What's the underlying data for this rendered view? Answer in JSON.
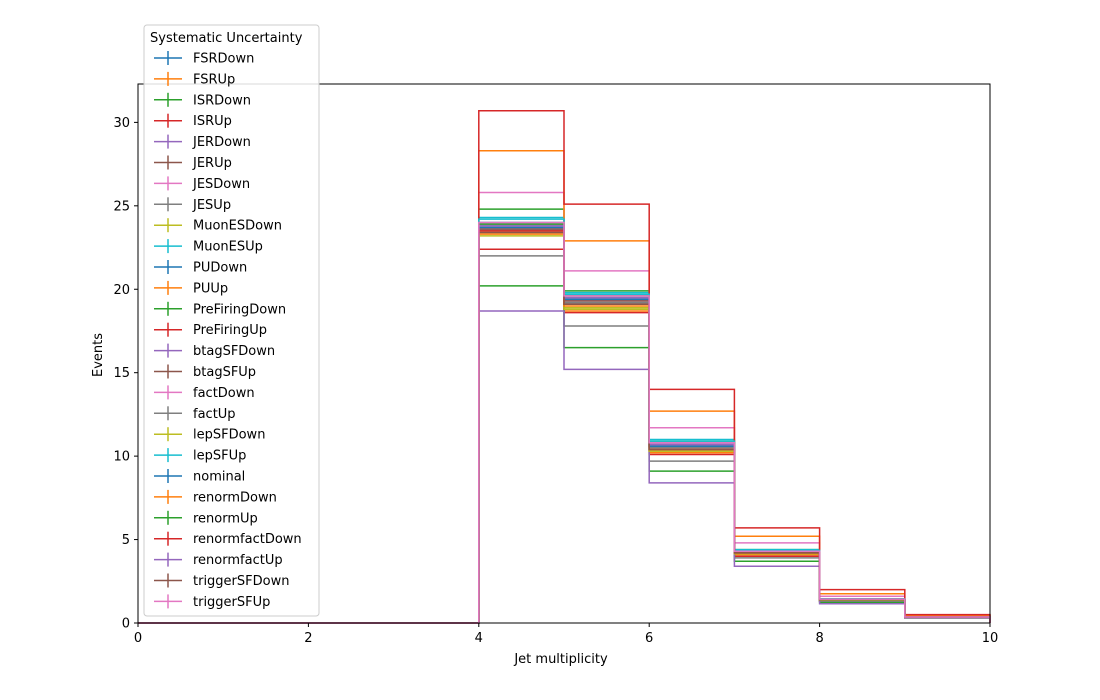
{
  "chart_data": {
    "type": "line",
    "title": "",
    "xlabel": "Jet multiplicity",
    "ylabel": "Events",
    "xlim": [
      0,
      10
    ],
    "ylim": [
      0,
      32.3
    ],
    "grid": false,
    "legend_title": "Systematic Uncertainty",
    "legend_placement": "top-left",
    "x_ticks": [
      "0",
      "2",
      "4",
      "6",
      "8",
      "10"
    ],
    "y_ticks": [
      "0",
      "5",
      "10",
      "15",
      "20",
      "25",
      "30"
    ],
    "bin_edges": [
      0,
      1,
      2,
      3,
      4,
      5,
      6,
      7,
      8,
      9,
      10
    ],
    "series": [
      {
        "name": "FSRDown",
        "color": "#1f77b4",
        "values": [
          0,
          0,
          0,
          0,
          24.0,
          19.6,
          10.7,
          4.3,
          1.4,
          0.35
        ]
      },
      {
        "name": "FSRUp",
        "color": "#ff7f0e",
        "values": [
          0,
          0,
          0,
          0,
          23.3,
          18.7,
          10.2,
          4.1,
          1.35,
          0.35
        ]
      },
      {
        "name": "ISRDown",
        "color": "#2ca02c",
        "values": [
          0,
          0,
          0,
          0,
          24.8,
          19.9,
          10.9,
          4.4,
          1.45,
          0.35
        ]
      },
      {
        "name": "ISRUp",
        "color": "#d62728",
        "values": [
          0,
          0,
          0,
          0,
          22.4,
          18.6,
          10.1,
          4.0,
          1.3,
          0.33
        ]
      },
      {
        "name": "JERDown",
        "color": "#9467bd",
        "values": [
          0,
          0,
          0,
          0,
          23.6,
          19.3,
          10.5,
          4.2,
          1.4,
          0.35
        ]
      },
      {
        "name": "JERUp",
        "color": "#8c564b",
        "values": [
          0,
          0,
          0,
          0,
          23.7,
          19.3,
          10.6,
          4.25,
          1.4,
          0.35
        ]
      },
      {
        "name": "JESDown",
        "color": "#e377c2",
        "values": [
          0,
          0,
          0,
          0,
          25.8,
          21.1,
          11.7,
          4.8,
          1.6,
          0.38
        ]
      },
      {
        "name": "JESUp",
        "color": "#7f7f7f",
        "values": [
          0,
          0,
          0,
          0,
          22.0,
          17.8,
          9.7,
          3.9,
          1.3,
          0.33
        ]
      },
      {
        "name": "MuonESDown",
        "color": "#bcbd22",
        "values": [
          0,
          0,
          0,
          0,
          23.5,
          18.9,
          10.3,
          4.15,
          1.38,
          0.34
        ]
      },
      {
        "name": "MuonESUp",
        "color": "#17becf",
        "values": [
          0,
          0,
          0,
          0,
          24.3,
          19.8,
          11.0,
          4.4,
          1.45,
          0.36
        ]
      },
      {
        "name": "PUDown",
        "color": "#1f77b4",
        "values": [
          0,
          0,
          0,
          0,
          23.8,
          19.4,
          10.6,
          4.3,
          1.42,
          0.35
        ]
      },
      {
        "name": "PUUp",
        "color": "#ff7f0e",
        "values": [
          0,
          0,
          0,
          0,
          28.3,
          22.9,
          12.7,
          5.2,
          1.75,
          0.45
        ]
      },
      {
        "name": "PreFiringDown",
        "color": "#2ca02c",
        "values": [
          0,
          0,
          0,
          0,
          20.2,
          16.5,
          9.1,
          3.7,
          1.22,
          0.3
        ]
      },
      {
        "name": "PreFiringUp",
        "color": "#d62728",
        "values": [
          0,
          0,
          0,
          0,
          30.7,
          25.1,
          14.0,
          5.7,
          2.0,
          0.5
        ]
      },
      {
        "name": "btagSFDown",
        "color": "#9467bd",
        "values": [
          0,
          0,
          0,
          0,
          18.7,
          15.2,
          8.4,
          3.4,
          1.15,
          0.3
        ]
      },
      {
        "name": "btagSFUp",
        "color": "#8c564b",
        "values": [
          0,
          0,
          0,
          0,
          23.6,
          19.2,
          10.5,
          4.2,
          1.4,
          0.35
        ]
      },
      {
        "name": "factDown",
        "color": "#e377c2",
        "values": [
          0,
          0,
          0,
          0,
          23.9,
          19.5,
          10.7,
          4.3,
          1.42,
          0.35
        ]
      },
      {
        "name": "factUp",
        "color": "#7f7f7f",
        "values": [
          0,
          0,
          0,
          0,
          23.5,
          19.2,
          10.5,
          4.2,
          1.4,
          0.35
        ]
      },
      {
        "name": "lepSFDown",
        "color": "#bcbd22",
        "values": [
          0,
          0,
          0,
          0,
          23.2,
          18.8,
          10.3,
          4.15,
          1.38,
          0.34
        ]
      },
      {
        "name": "lepSFUp",
        "color": "#17becf",
        "values": [
          0,
          0,
          0,
          0,
          24.2,
          19.7,
          10.9,
          4.35,
          1.44,
          0.36
        ]
      },
      {
        "name": "nominal",
        "color": "#1f77b4",
        "values": [
          0,
          0,
          0,
          0,
          23.7,
          19.4,
          10.6,
          4.25,
          1.41,
          0.35
        ]
      },
      {
        "name": "renormDown",
        "color": "#ff7f0e",
        "values": [
          0,
          0,
          0,
          0,
          23.4,
          19.0,
          10.4,
          4.2,
          1.39,
          0.35
        ]
      },
      {
        "name": "renormUp",
        "color": "#2ca02c",
        "values": [
          0,
          0,
          0,
          0,
          23.9,
          19.6,
          10.8,
          4.3,
          1.43,
          0.35
        ]
      },
      {
        "name": "renormfactDown",
        "color": "#d62728",
        "values": [
          0,
          0,
          0,
          0,
          23.5,
          19.1,
          10.4,
          4.2,
          1.4,
          0.35
        ]
      },
      {
        "name": "renormfactUp",
        "color": "#9467bd",
        "values": [
          0,
          0,
          0,
          0,
          23.8,
          19.5,
          10.7,
          4.3,
          1.42,
          0.35
        ]
      },
      {
        "name": "triggerSFDown",
        "color": "#8c564b",
        "values": [
          0,
          0,
          0,
          0,
          23.4,
          19.1,
          10.4,
          4.2,
          1.39,
          0.35
        ]
      },
      {
        "name": "triggerSFUp",
        "color": "#e377c2",
        "values": [
          0,
          0,
          0,
          0,
          24.0,
          19.6,
          10.8,
          4.3,
          1.43,
          0.36
        ]
      }
    ]
  }
}
